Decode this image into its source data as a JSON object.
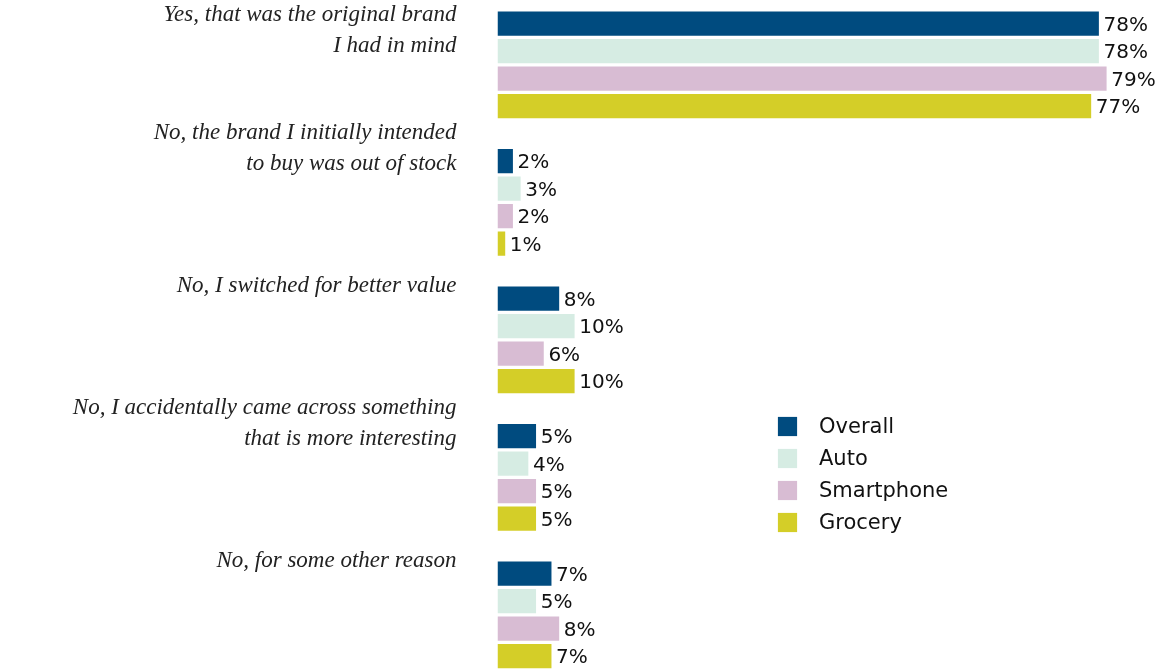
{
  "chart_data": {
    "type": "bar",
    "orientation": "horizontal",
    "categories": [
      "Yes, that was the original brand\nI had in mind",
      "No, the brand I initially intended\nto buy was out of stock",
      "No, I switched for better value",
      "No, I accidentally came across something\nthat is more interesting",
      "No, for some other reason"
    ],
    "series": [
      {
        "name": "Overall",
        "color": "#004b7f",
        "values": [
          78,
          2,
          8,
          5,
          7
        ],
        "value_labels": [
          "78%",
          "2%",
          "8%",
          "5%",
          "7%"
        ]
      },
      {
        "name": "Auto",
        "color": "#d6ece3",
        "values": [
          78,
          3,
          10,
          4,
          5
        ],
        "value_labels": [
          "78%",
          "3%",
          "10%",
          "4%",
          "5%"
        ]
      },
      {
        "name": "Smartphone",
        "color": "#d8bcd3",
        "values": [
          79,
          2,
          6,
          5,
          8
        ],
        "value_labels": [
          "79%",
          "2%",
          "6%",
          "5%",
          "8%"
        ]
      },
      {
        "name": "Grocery",
        "color": "#d4ce28",
        "values": [
          77,
          1,
          10,
          5,
          7
        ],
        "value_labels": [
          "77%",
          "1%",
          "10%",
          "5%",
          "7%"
        ]
      }
    ],
    "legend": "right",
    "grid": false,
    "tick_labels": "y"
  }
}
